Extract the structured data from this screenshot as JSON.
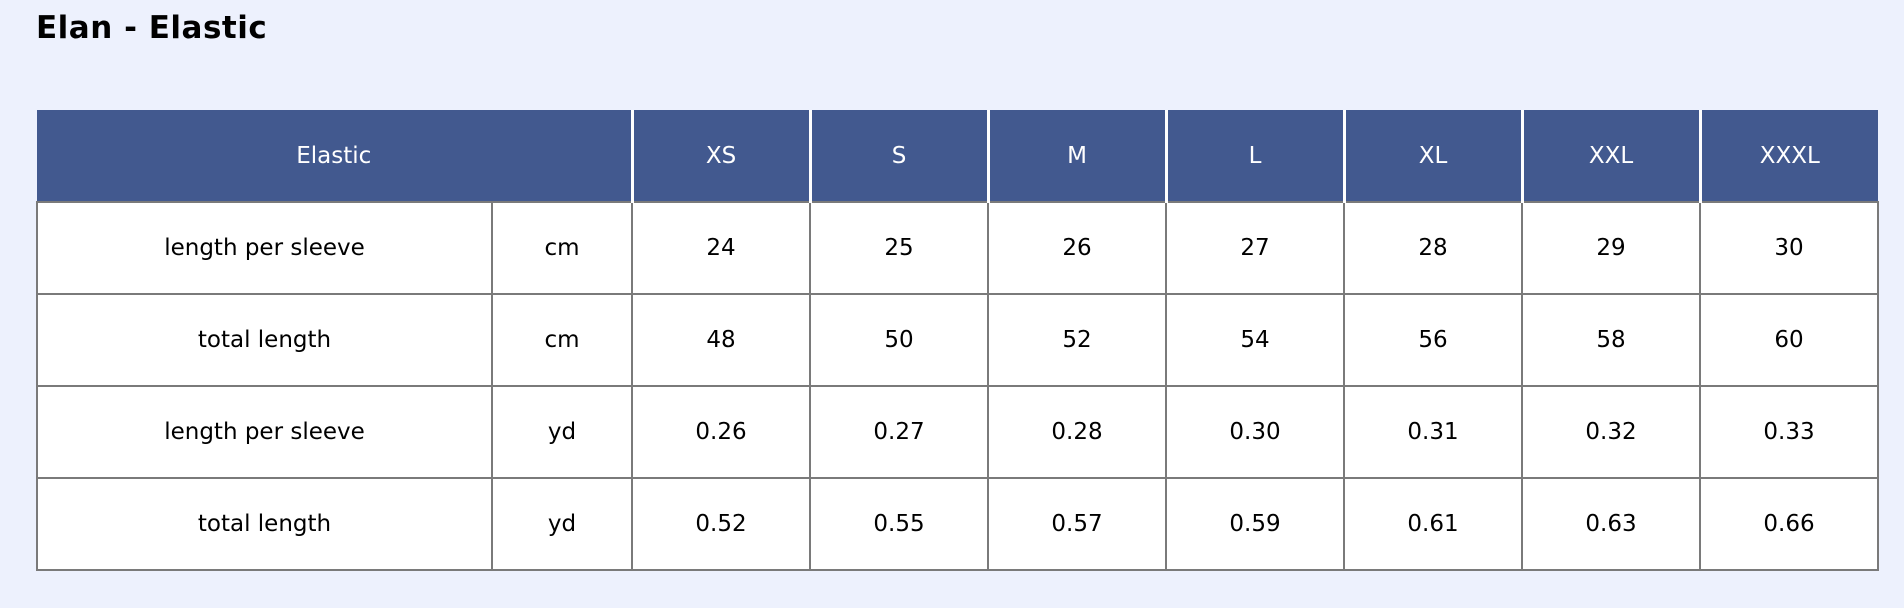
{
  "page": {
    "title": "Elan - Elastic"
  },
  "colors": {
    "background": "#edf1fd",
    "header_bg": "#42598f",
    "header_text": "#ffffff",
    "body_text": "#000000",
    "border": "#7a7a7a",
    "separator": "#ffffff"
  },
  "chart_data": {
    "type": "table",
    "title": "Elan - Elastic",
    "header": [
      "Elastic",
      "XS",
      "S",
      "M",
      "L",
      "XL",
      "XXL",
      "XXXL"
    ],
    "header_first_cell_colspan": 2,
    "rows": [
      {
        "label": "length per sleeve",
        "unit": "cm",
        "values": [
          "24",
          "25",
          "26",
          "27",
          "28",
          "29",
          "30"
        ]
      },
      {
        "label": "total length",
        "unit": "cm",
        "values": [
          "48",
          "50",
          "52",
          "54",
          "56",
          "58",
          "60"
        ]
      },
      {
        "label": "length per sleeve",
        "unit": "yd",
        "values": [
          "0.26",
          "0.27",
          "0.28",
          "0.30",
          "0.31",
          "0.32",
          "0.33"
        ]
      },
      {
        "label": "total length",
        "unit": "yd",
        "values": [
          "0.52",
          "0.55",
          "0.57",
          "0.59",
          "0.61",
          "0.63",
          "0.66"
        ]
      }
    ]
  }
}
